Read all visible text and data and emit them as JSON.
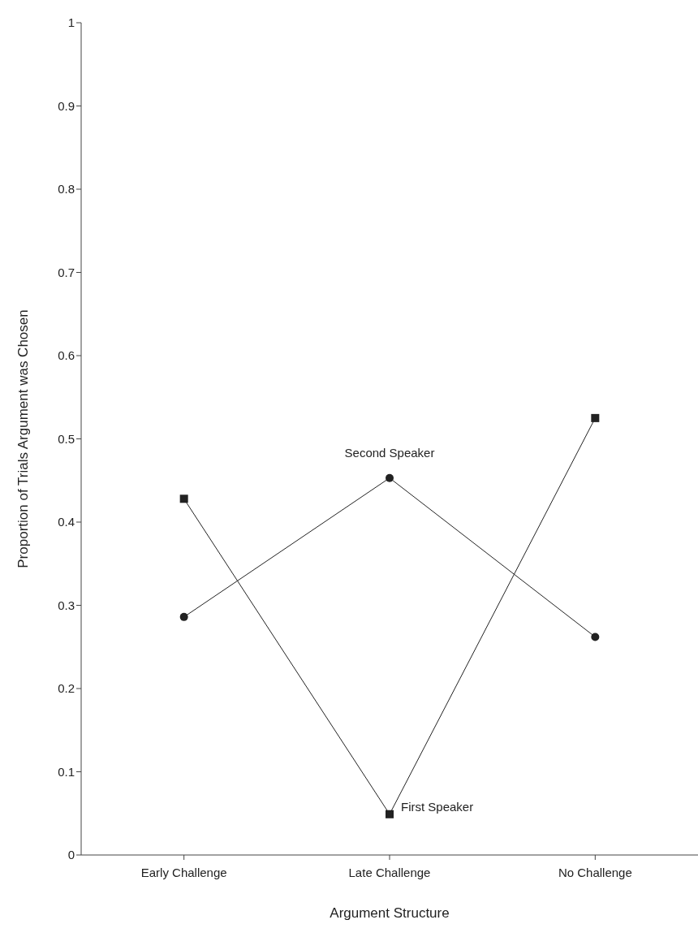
{
  "chart_data": {
    "type": "line",
    "xlabel": "Argument Structure",
    "ylabel": "Proportion of Trials Argument was Chosen",
    "categories": [
      "Early Challenge",
      "Late Challenge",
      "No Challenge"
    ],
    "series": [
      {
        "name": "Second Speaker",
        "color": "#222222",
        "marker": "circle",
        "values": [
          0.286,
          0.453,
          0.262
        ]
      },
      {
        "name": "First Speaker",
        "color": "#222222",
        "marker": "square",
        "values": [
          0.428,
          0.049,
          0.525
        ]
      }
    ],
    "ylim": [
      0,
      1
    ],
    "yticks": [
      0,
      0.1,
      0.2,
      0.3,
      0.4,
      0.5,
      0.6,
      0.7,
      0.8,
      0.9,
      1
    ],
    "grid": false,
    "legend": false
  }
}
